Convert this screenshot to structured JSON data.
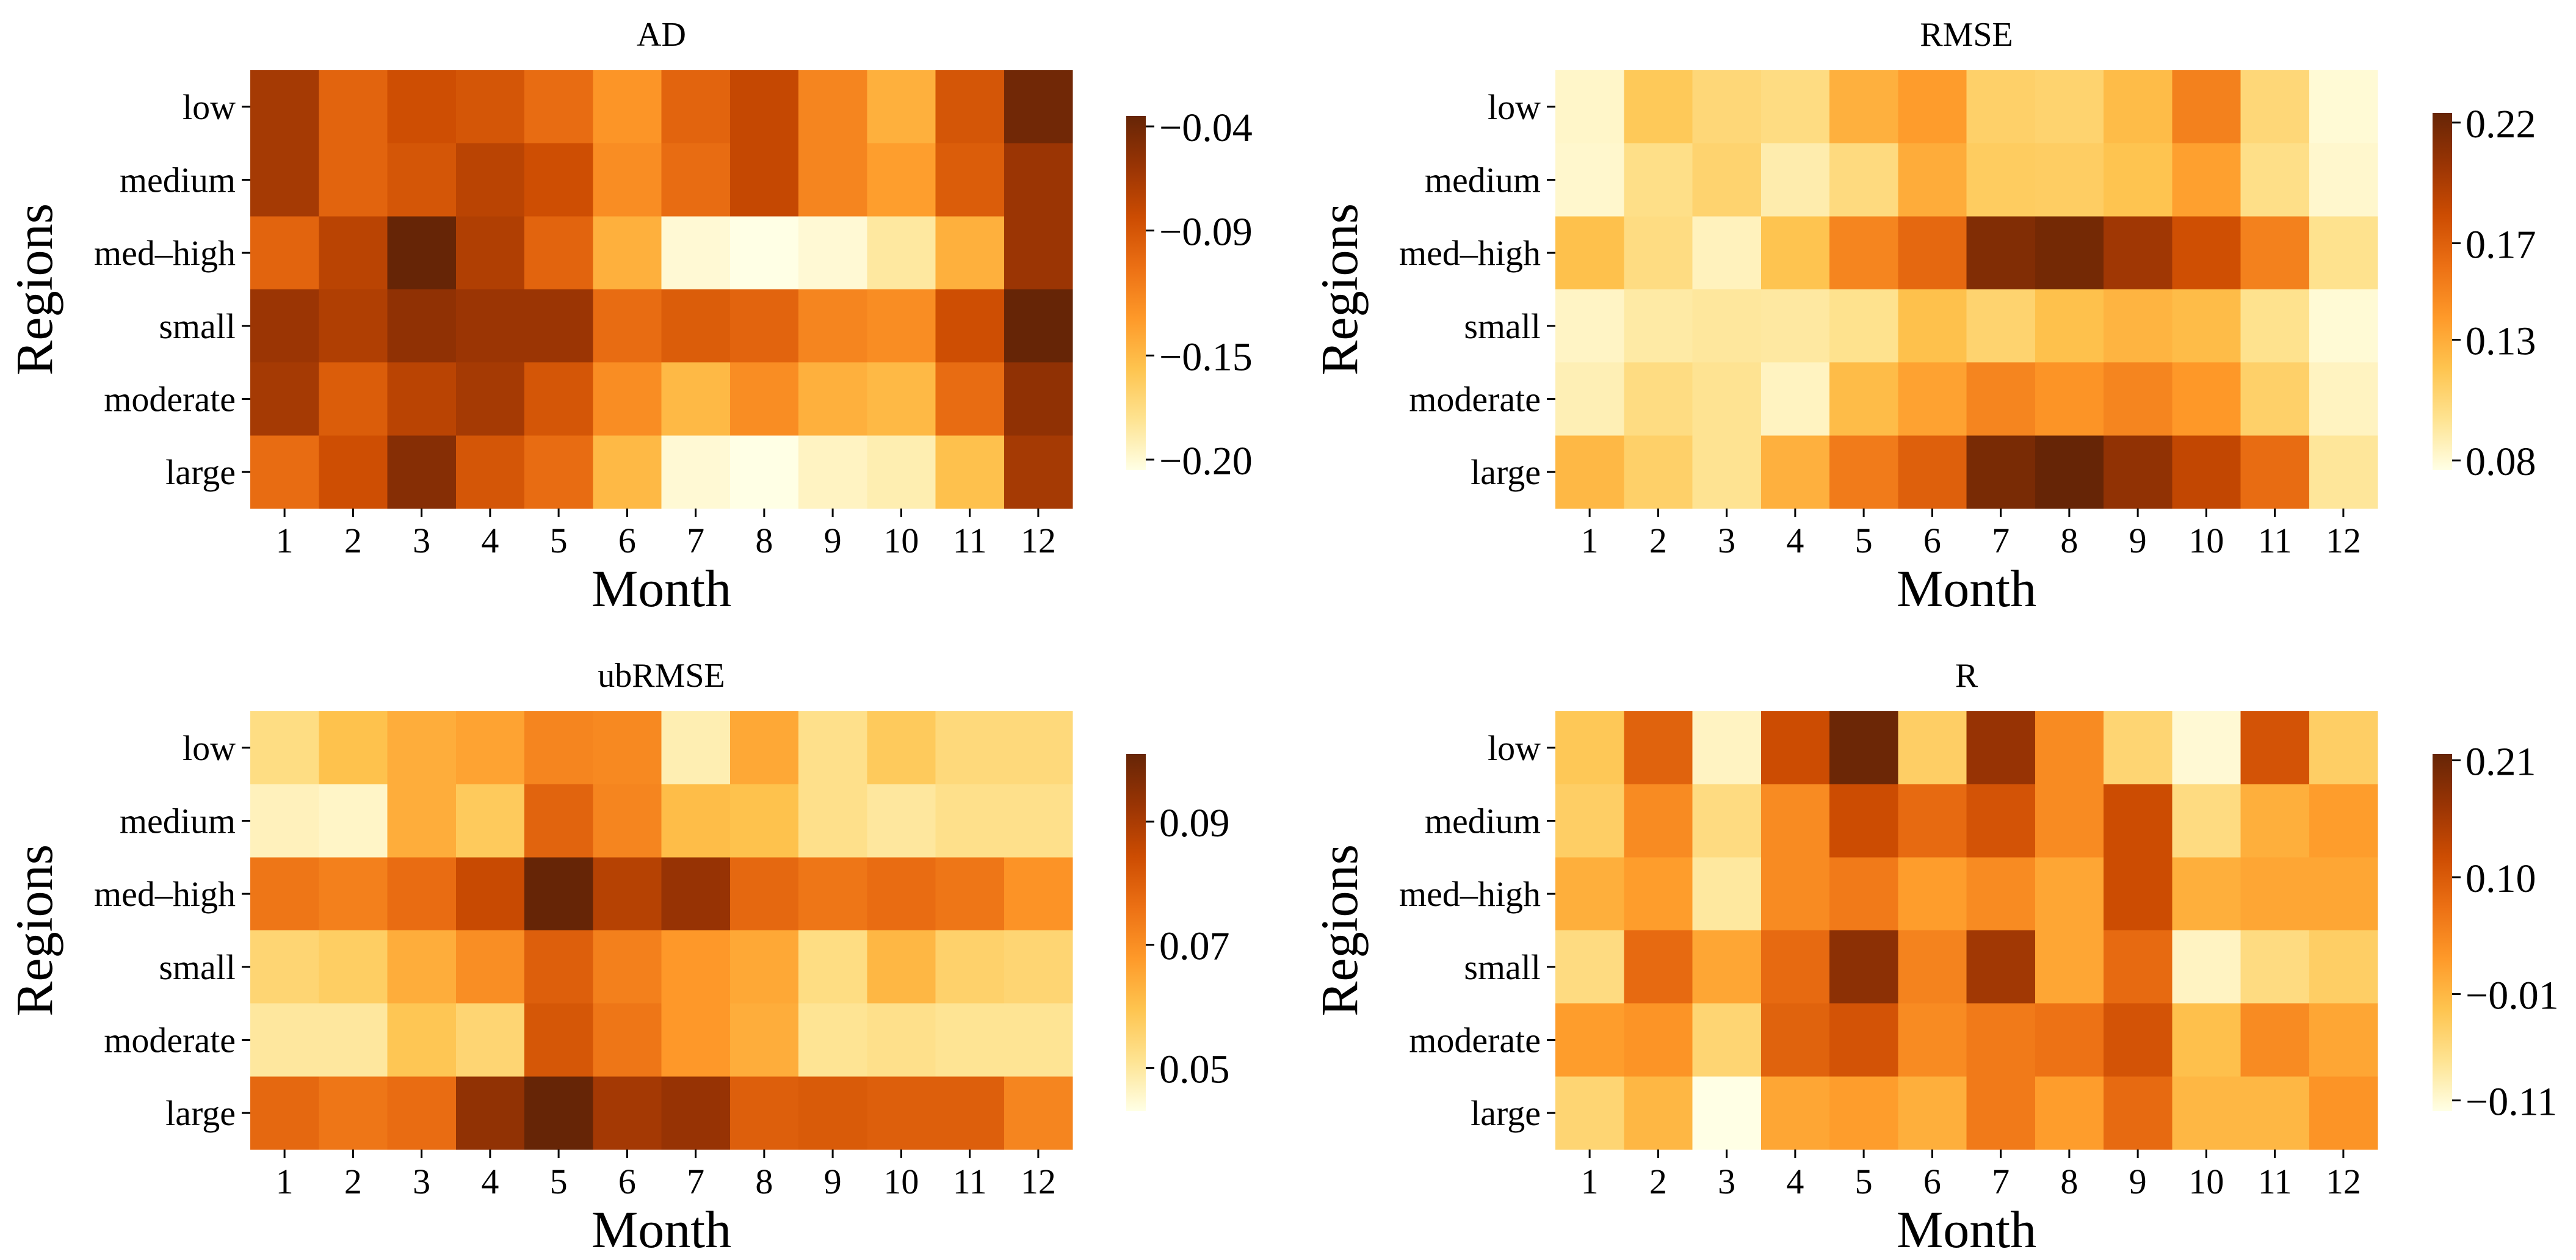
{
  "chart_data": [
    {
      "type": "heatmap",
      "title": "AD",
      "xlabel": "Month",
      "ylabel": "Regions",
      "x_ticks": [
        "1",
        "2",
        "3",
        "4",
        "5",
        "6",
        "7",
        "8",
        "9",
        "10",
        "11",
        "12"
      ],
      "y_ticks": [
        "low",
        "medium",
        "med–high",
        "small",
        "moderate",
        "large"
      ],
      "colorbar": {
        "range": [
          -0.205,
          -0.035
        ],
        "ticks": [
          -0.04,
          -0.09,
          -0.15,
          -0.2
        ],
        "tick_labels": [
          "−0.04",
          "−0.09",
          "−0.15",
          "−0.20"
        ]
      },
      "values": [
        [
          -0.065,
          -0.1,
          -0.085,
          -0.09,
          -0.105,
          -0.13,
          -0.1,
          -0.08,
          -0.12,
          -0.145,
          -0.09,
          -0.04
        ],
        [
          -0.065,
          -0.1,
          -0.09,
          -0.075,
          -0.085,
          -0.125,
          -0.105,
          -0.08,
          -0.12,
          -0.135,
          -0.095,
          -0.06
        ],
        [
          -0.1,
          -0.075,
          -0.035,
          -0.07,
          -0.1,
          -0.145,
          -0.2,
          -0.205,
          -0.2,
          -0.185,
          -0.145,
          -0.06
        ],
        [
          -0.06,
          -0.07,
          -0.055,
          -0.06,
          -0.06,
          -0.105,
          -0.095,
          -0.1,
          -0.12,
          -0.125,
          -0.085,
          -0.035
        ],
        [
          -0.065,
          -0.095,
          -0.075,
          -0.065,
          -0.09,
          -0.125,
          -0.15,
          -0.125,
          -0.145,
          -0.15,
          -0.105,
          -0.055
        ],
        [
          -0.105,
          -0.085,
          -0.05,
          -0.09,
          -0.105,
          -0.15,
          -0.2,
          -0.205,
          -0.195,
          -0.19,
          -0.155,
          -0.065
        ]
      ]
    },
    {
      "type": "heatmap",
      "title": "RMSE",
      "xlabel": "Month",
      "ylabel": "Regions",
      "x_ticks": [
        "1",
        "2",
        "3",
        "4",
        "5",
        "6",
        "7",
        "8",
        "9",
        "10",
        "11",
        "12"
      ],
      "y_ticks": [
        "low",
        "medium",
        "med–high",
        "small",
        "moderate",
        "large"
      ],
      "colorbar": {
        "range": [
          0.076,
          0.224
        ],
        "ticks": [
          0.22,
          0.17,
          0.13,
          0.08
        ],
        "tick_labels": [
          "0.22",
          "0.17",
          "0.13",
          "0.08"
        ]
      },
      "values": [
        [
          0.083,
          0.115,
          0.105,
          0.102,
          0.128,
          0.138,
          0.11,
          0.108,
          0.122,
          0.152,
          0.105,
          0.08
        ],
        [
          0.082,
          0.1,
          0.108,
          0.09,
          0.103,
          0.13,
          0.113,
          0.112,
          0.118,
          0.136,
          0.1,
          0.082
        ],
        [
          0.12,
          0.102,
          0.086,
          0.118,
          0.15,
          0.165,
          0.213,
          0.218,
          0.2,
          0.18,
          0.152,
          0.098
        ],
        [
          0.084,
          0.092,
          0.094,
          0.093,
          0.098,
          0.12,
          0.108,
          0.12,
          0.126,
          0.122,
          0.098,
          0.08
        ],
        [
          0.088,
          0.102,
          0.097,
          0.085,
          0.122,
          0.135,
          0.15,
          0.142,
          0.15,
          0.14,
          0.11,
          0.085
        ],
        [
          0.124,
          0.11,
          0.097,
          0.128,
          0.155,
          0.17,
          0.216,
          0.224,
          0.206,
          0.186,
          0.163,
          0.095
        ]
      ]
    },
    {
      "type": "heatmap",
      "title": "ubRMSE",
      "xlabel": "Month",
      "ylabel": "Regions",
      "x_ticks": [
        "1",
        "2",
        "3",
        "4",
        "5",
        "6",
        "7",
        "8",
        "9",
        "10",
        "11",
        "12"
      ],
      "y_ticks": [
        "low",
        "medium",
        "med–high",
        "small",
        "moderate",
        "large"
      ],
      "colorbar": {
        "range": [
          0.043,
          0.101
        ],
        "ticks": [
          0.09,
          0.07,
          0.05
        ],
        "tick_labels": [
          "0.09",
          "0.07",
          "0.05"
        ]
      },
      "values": [
        [
          0.053,
          0.06,
          0.064,
          0.066,
          0.072,
          0.071,
          0.048,
          0.065,
          0.052,
          0.058,
          0.054,
          0.054
        ],
        [
          0.047,
          0.046,
          0.064,
          0.058,
          0.079,
          0.072,
          0.061,
          0.06,
          0.052,
          0.05,
          0.052,
          0.052
        ],
        [
          0.075,
          0.073,
          0.077,
          0.085,
          0.101,
          0.088,
          0.093,
          0.078,
          0.075,
          0.077,
          0.075,
          0.069
        ],
        [
          0.055,
          0.057,
          0.064,
          0.07,
          0.08,
          0.073,
          0.068,
          0.065,
          0.053,
          0.062,
          0.056,
          0.055
        ],
        [
          0.05,
          0.05,
          0.059,
          0.055,
          0.082,
          0.075,
          0.068,
          0.064,
          0.051,
          0.052,
          0.051,
          0.051
        ],
        [
          0.078,
          0.075,
          0.077,
          0.094,
          0.101,
          0.091,
          0.093,
          0.08,
          0.081,
          0.08,
          0.08,
          0.072
        ]
      ]
    },
    {
      "type": "heatmap",
      "title": "R",
      "xlabel": "Month",
      "ylabel": "Regions",
      "x_ticks": [
        "1",
        "2",
        "3",
        "4",
        "5",
        "6",
        "7",
        "8",
        "9",
        "10",
        "11",
        "12"
      ],
      "y_ticks": [
        "low",
        "medium",
        "med–high",
        "small",
        "moderate",
        "large"
      ],
      "colorbar": {
        "range": [
          -0.12,
          0.216
        ],
        "ticks": [
          0.21,
          0.1,
          -0.01,
          -0.11
        ],
        "tick_labels": [
          "0.21",
          "0.10",
          "−0.01",
          "−0.11"
        ]
      },
      "values": [
        [
          -0.03,
          0.09,
          -0.1,
          0.12,
          0.21,
          -0.04,
          0.17,
          0.04,
          -0.05,
          -0.11,
          0.11,
          -0.04
        ],
        [
          -0.04,
          0.04,
          -0.06,
          0.04,
          0.12,
          0.08,
          0.11,
          0.04,
          0.12,
          -0.06,
          0.0,
          0.02
        ],
        [
          0.0,
          0.02,
          -0.08,
          0.04,
          0.06,
          0.02,
          0.04,
          0.01,
          0.12,
          0.0,
          0.01,
          0.01
        ],
        [
          -0.06,
          0.08,
          0.01,
          0.08,
          0.18,
          0.05,
          0.16,
          0.01,
          0.08,
          -0.1,
          -0.06,
          -0.04
        ],
        [
          0.02,
          0.03,
          -0.05,
          0.09,
          0.11,
          0.04,
          0.06,
          0.07,
          0.11,
          -0.02,
          0.04,
          0.01
        ],
        [
          -0.05,
          -0.01,
          -0.12,
          0.01,
          0.02,
          0.0,
          0.06,
          0.02,
          0.08,
          -0.01,
          -0.01,
          0.03
        ]
      ]
    }
  ],
  "colors": {
    "stops": [
      "#ffffe5",
      "#fee391",
      "#fec44f",
      "#fe9929",
      "#ec7014",
      "#cc4c02",
      "#993404",
      "#662506"
    ],
    "text": "#000000",
    "axis": "#000000"
  }
}
